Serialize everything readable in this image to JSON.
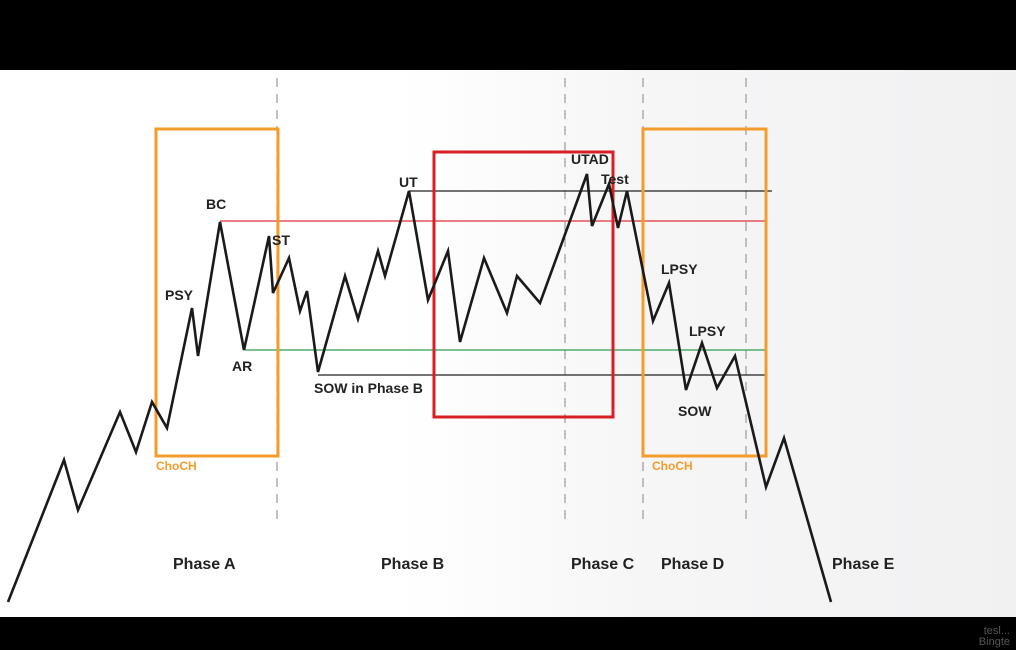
{
  "diagram": {
    "phase_labels": [
      "Phase A",
      "Phase B",
      "Phase C",
      "Phase D",
      "Phase E"
    ],
    "event_labels": {
      "bc": "BC",
      "st": "ST",
      "psy": "PSY",
      "ar": "AR",
      "ut": "UT",
      "sow_phase_b": "SOW in Phase B",
      "utad": "UTAD",
      "test": "Test",
      "lpsy_1": "LPSY",
      "lpsy_2": "LPSY",
      "sow": "SOW"
    },
    "box_labels": {
      "choch_a": "ChoCH",
      "choch_d": "ChoCH"
    },
    "colors": {
      "orange_box": "#F39C2B",
      "red_box": "#D81F26",
      "red_line": "#E0333A",
      "green_line": "#2E9E4F",
      "black_line": "#222222",
      "price_path": "#1a1a1a",
      "phase_divider": "#9a9a9a"
    }
  },
  "watermark": {
    "line1": "tesl...",
    "line2": "Bingte"
  }
}
